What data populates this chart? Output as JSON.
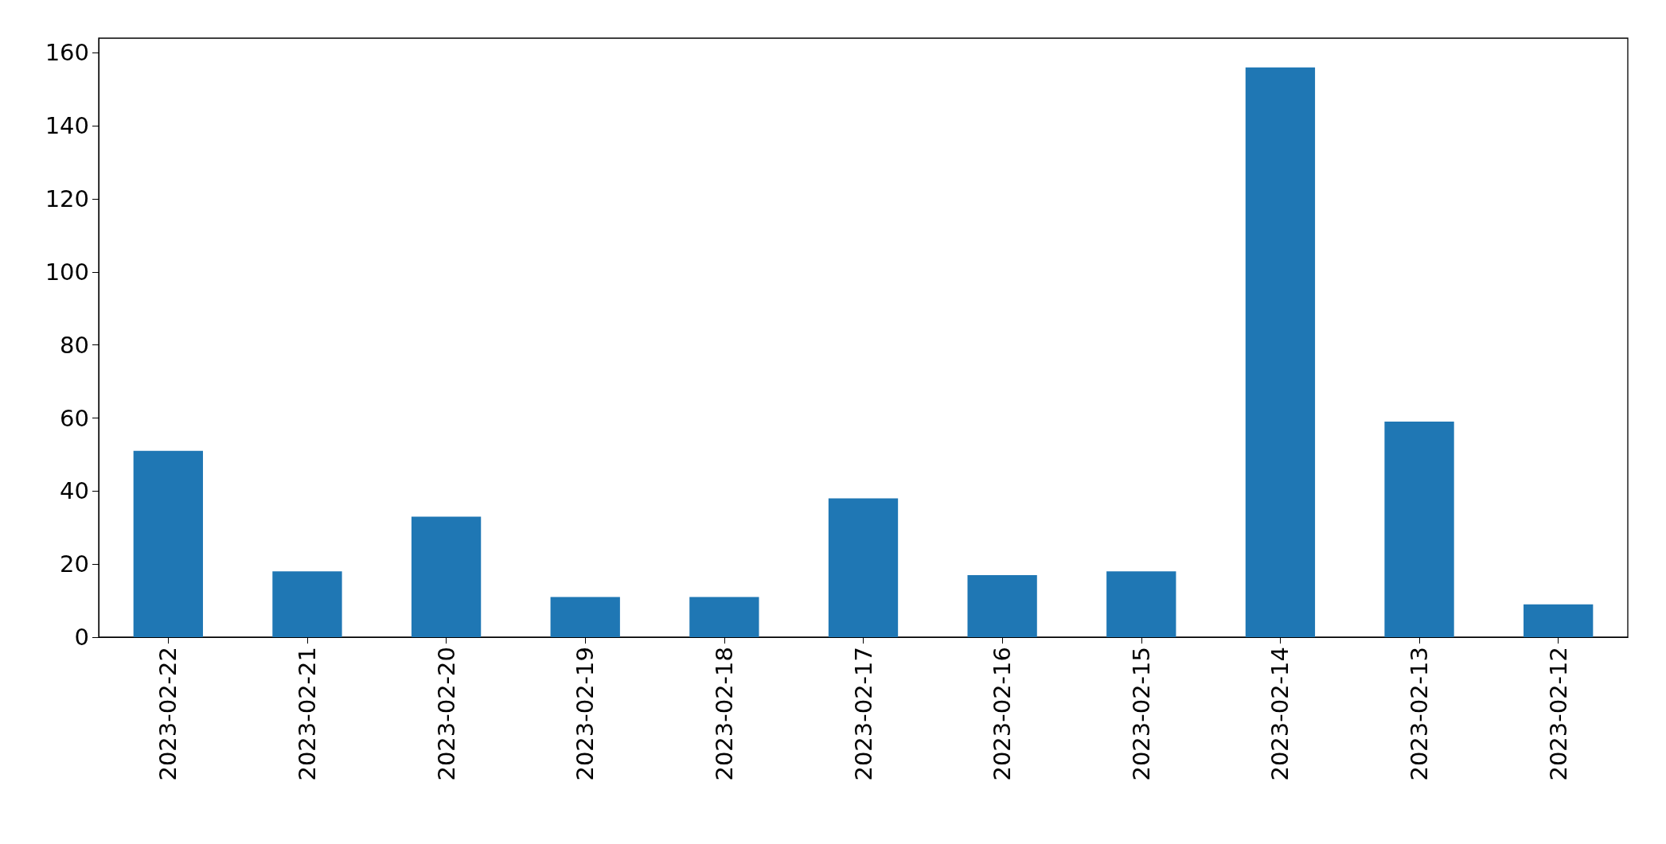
{
  "chart_data": {
    "type": "bar",
    "categories": [
      "2023-02-22",
      "2023-02-21",
      "2023-02-20",
      "2023-02-19",
      "2023-02-18",
      "2023-02-17",
      "2023-02-16",
      "2023-02-15",
      "2023-02-14",
      "2023-02-13",
      "2023-02-12"
    ],
    "values": [
      51,
      18,
      33,
      11,
      11,
      38,
      17,
      18,
      156,
      59,
      9
    ],
    "color": "#1f77b4",
    "ylim": [
      0,
      164
    ],
    "yticks": [
      0,
      20,
      40,
      60,
      80,
      100,
      120,
      140,
      160
    ],
    "grid": false
  }
}
